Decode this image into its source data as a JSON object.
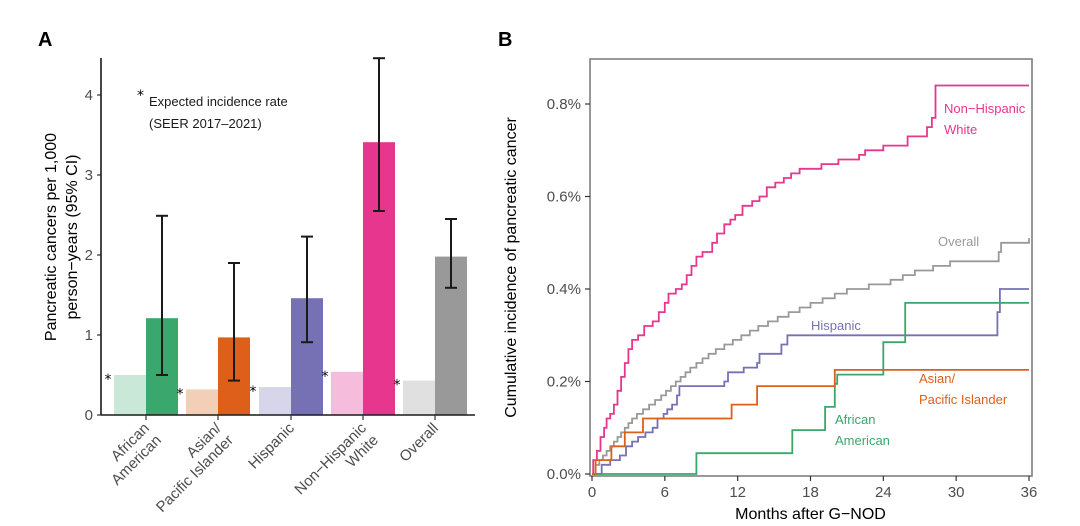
{
  "panels": {
    "a_letter": "A",
    "b_letter": "B"
  },
  "chart_data": [
    {
      "type": "bar",
      "panel": "A",
      "title": "",
      "xlabel": "",
      "ylabel_lines": [
        "Pancreatic cancers per 1,000",
        "person−years (95% CI)"
      ],
      "ylim": [
        0,
        4.45
      ],
      "yticks": [
        0,
        1,
        2,
        3,
        4
      ],
      "grid": false,
      "annotation": {
        "marker": "*",
        "lines": [
          "Expected incidence rate",
          "(SEER 2017–2021)"
        ]
      },
      "categories": [
        {
          "label_lines": [
            "African",
            "American"
          ],
          "expected": 0.5,
          "observed": 1.21,
          "ci": [
            0.5,
            2.49
          ],
          "color": "#3aa76d",
          "light_color": "#c9e8d8"
        },
        {
          "label_lines": [
            "Asian/",
            "Pacific Islander"
          ],
          "expected": 0.32,
          "observed": 0.97,
          "ci": [
            0.43,
            1.9
          ],
          "color": "#de5f1a",
          "light_color": "#f3cfb7"
        },
        {
          "label_lines": [
            "Hispanic"
          ],
          "expected": 0.35,
          "observed": 1.46,
          "ci": [
            0.91,
            2.23
          ],
          "color": "#7670b5",
          "light_color": "#d7d5ea"
        },
        {
          "label_lines": [
            "Non−Hispanic",
            "White"
          ],
          "expected": 0.54,
          "observed": 3.41,
          "ci": [
            2.55,
            4.46
          ],
          "color": "#e7368e",
          "light_color": "#f5bcdc"
        },
        {
          "label_lines": [
            "Overall"
          ],
          "expected": 0.43,
          "observed": 1.98,
          "ci": [
            1.59,
            2.45
          ],
          "color": "#999999",
          "light_color": "#e0e0e0"
        }
      ],
      "series": [
        {
          "name": "Expected incidence rate (SEER 2017–2021)",
          "values": [
            0.5,
            0.32,
            0.35,
            0.54,
            0.43
          ]
        },
        {
          "name": "Observed",
          "values": [
            1.21,
            0.97,
            1.46,
            3.41,
            1.98
          ]
        }
      ]
    },
    {
      "type": "line",
      "step": true,
      "panel": "B",
      "title": "",
      "xlabel": "Months after G−NOD",
      "ylabel": "Cumulative incidence of pancreatic cancer",
      "xlim": [
        -1,
        37
      ],
      "ylim": [
        -0.002,
        0.89
      ],
      "xticks": [
        0,
        6,
        12,
        18,
        24,
        30,
        36
      ],
      "yticks": [
        0.0,
        0.2,
        0.4,
        0.6,
        0.8
      ],
      "ytick_labels": [
        "0.0%",
        "0.2%",
        "0.4%",
        "0.6%",
        "0.8%"
      ],
      "grid": false,
      "legend": "direct labels at line ends",
      "series": [
        {
          "name": "Non−Hispanic White",
          "label_lines": [
            "Non−Hispanic",
            "White"
          ],
          "color": "#e7368e",
          "points": [
            [
              0,
              0
            ],
            [
              0.1,
              0.03
            ],
            [
              0.4,
              0.05
            ],
            [
              0.7,
              0.08
            ],
            [
              1.0,
              0.1
            ],
            [
              1.2,
              0.12
            ],
            [
              1.5,
              0.13
            ],
            [
              1.8,
              0.15
            ],
            [
              2.1,
              0.18
            ],
            [
              2.4,
              0.21
            ],
            [
              2.7,
              0.24
            ],
            [
              3.0,
              0.27
            ],
            [
              3.3,
              0.29
            ],
            [
              3.8,
              0.3
            ],
            [
              4.3,
              0.32
            ],
            [
              5.0,
              0.33
            ],
            [
              5.5,
              0.35
            ],
            [
              6.0,
              0.37
            ],
            [
              6.3,
              0.39
            ],
            [
              6.9,
              0.4
            ],
            [
              7.4,
              0.41
            ],
            [
              7.8,
              0.43
            ],
            [
              8.2,
              0.45
            ],
            [
              8.6,
              0.47
            ],
            [
              9.1,
              0.48
            ],
            [
              9.9,
              0.5
            ],
            [
              10.3,
              0.52
            ],
            [
              10.9,
              0.54
            ],
            [
              11.4,
              0.55
            ],
            [
              11.8,
              0.56
            ],
            [
              12.4,
              0.58
            ],
            [
              13.2,
              0.59
            ],
            [
              13.8,
              0.6
            ],
            [
              14.4,
              0.62
            ],
            [
              15.1,
              0.63
            ],
            [
              15.8,
              0.64
            ],
            [
              16.4,
              0.65
            ],
            [
              17.1,
              0.66
            ],
            [
              18.9,
              0.67
            ],
            [
              20.3,
              0.68
            ],
            [
              22.0,
              0.69
            ],
            [
              22.5,
              0.7
            ],
            [
              24.0,
              0.71
            ],
            [
              26.0,
              0.73
            ],
            [
              27.6,
              0.75
            ],
            [
              28.0,
              0.77
            ],
            [
              28.3,
              0.84
            ],
            [
              36,
              0.84
            ]
          ]
        },
        {
          "name": "Overall",
          "label_lines": [
            "Overall"
          ],
          "color": "#999999",
          "points": [
            [
              0,
              0
            ],
            [
              0.3,
              0.02
            ],
            [
              0.6,
              0.03
            ],
            [
              0.9,
              0.04
            ],
            [
              1.2,
              0.05
            ],
            [
              1.5,
              0.06
            ],
            [
              1.8,
              0.07
            ],
            [
              2.1,
              0.08
            ],
            [
              2.4,
              0.09
            ],
            [
              2.7,
              0.1
            ],
            [
              3.0,
              0.11
            ],
            [
              3.3,
              0.12
            ],
            [
              3.7,
              0.13
            ],
            [
              4.2,
              0.14
            ],
            [
              4.7,
              0.15
            ],
            [
              5.2,
              0.16
            ],
            [
              5.7,
              0.17
            ],
            [
              6.1,
              0.18
            ],
            [
              6.5,
              0.19
            ],
            [
              6.9,
              0.2
            ],
            [
              7.3,
              0.21
            ],
            [
              7.7,
              0.22
            ],
            [
              8.1,
              0.23
            ],
            [
              8.6,
              0.24
            ],
            [
              9.1,
              0.25
            ],
            [
              9.6,
              0.26
            ],
            [
              10.2,
              0.27
            ],
            [
              10.9,
              0.28
            ],
            [
              11.6,
              0.29
            ],
            [
              12.3,
              0.3
            ],
            [
              13.0,
              0.31
            ],
            [
              13.7,
              0.32
            ],
            [
              14.5,
              0.33
            ],
            [
              15.3,
              0.34
            ],
            [
              16.2,
              0.35
            ],
            [
              17.1,
              0.36
            ],
            [
              18.0,
              0.37
            ],
            [
              19.0,
              0.38
            ],
            [
              20.0,
              0.39
            ],
            [
              21.0,
              0.4
            ],
            [
              22.8,
              0.41
            ],
            [
              24.6,
              0.42
            ],
            [
              25.6,
              0.43
            ],
            [
              26.6,
              0.44
            ],
            [
              28.1,
              0.45
            ],
            [
              29.5,
              0.46
            ],
            [
              33.5,
              0.48
            ],
            [
              33.7,
              0.5
            ],
            [
              36,
              0.51
            ]
          ]
        },
        {
          "name": "Hispanic",
          "label_lines": [
            "Hispanic"
          ],
          "color": "#7670b5",
          "points": [
            [
              0,
              0
            ],
            [
              0.8,
              0.02
            ],
            [
              1.5,
              0.03
            ],
            [
              2.3,
              0.04
            ],
            [
              2.8,
              0.06
            ],
            [
              3.3,
              0.07
            ],
            [
              3.8,
              0.08
            ],
            [
              4.4,
              0.09
            ],
            [
              5.0,
              0.1
            ],
            [
              5.4,
              0.12
            ],
            [
              5.9,
              0.13
            ],
            [
              6.2,
              0.14
            ],
            [
              6.6,
              0.15
            ],
            [
              7.0,
              0.17
            ],
            [
              7.2,
              0.19
            ],
            [
              10.9,
              0.2
            ],
            [
              11.2,
              0.22
            ],
            [
              12.5,
              0.23
            ],
            [
              13.6,
              0.24
            ],
            [
              13.8,
              0.26
            ],
            [
              15.6,
              0.28
            ],
            [
              16.1,
              0.3
            ],
            [
              33.3,
              0.3
            ],
            [
              33.4,
              0.35
            ],
            [
              33.6,
              0.4
            ],
            [
              36,
              0.4
            ]
          ]
        },
        {
          "name": "African American",
          "label_lines": [
            "African",
            "American"
          ],
          "color": "#3aa76d",
          "points": [
            [
              0,
              0
            ],
            [
              8.6,
              0.045
            ],
            [
              16.5,
              0.095
            ],
            [
              19.2,
              0.145
            ],
            [
              20.0,
              0.195
            ],
            [
              20.2,
              0.215
            ],
            [
              24.0,
              0.285
            ],
            [
              25.8,
              0.37
            ],
            [
              36,
              0.37
            ]
          ]
        },
        {
          "name": "Asian/Pacific Islander",
          "label_lines": [
            "Asian/",
            "Pacific Islander"
          ],
          "color": "#de5f1a",
          "points": [
            [
              0,
              0
            ],
            [
              0.3,
              0.03
            ],
            [
              1.6,
              0.06
            ],
            [
              2.7,
              0.09
            ],
            [
              4.2,
              0.12
            ],
            [
              11.5,
              0.15
            ],
            [
              13.6,
              0.19
            ],
            [
              20.0,
              0.225
            ],
            [
              36,
              0.225
            ]
          ]
        }
      ]
    }
  ]
}
